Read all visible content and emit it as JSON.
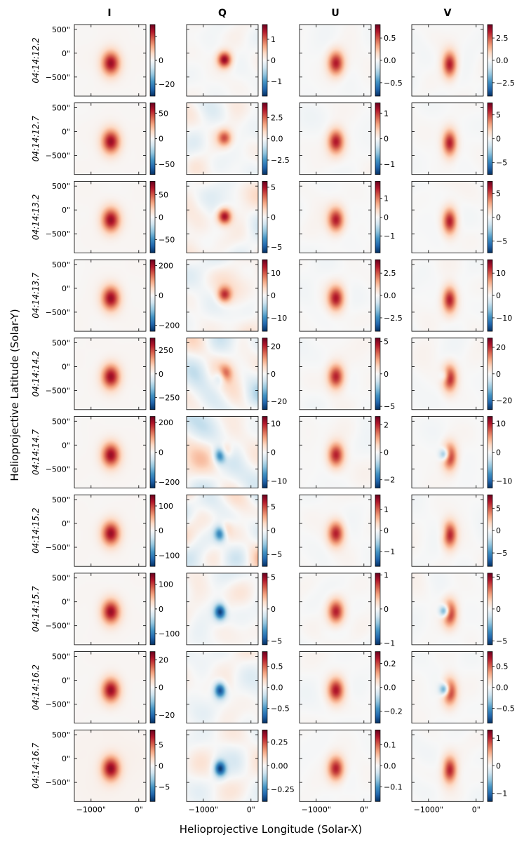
{
  "chart_data": {
    "type": "heatmap",
    "colormap": "RdBu_r",
    "columns": [
      "I",
      "Q",
      "U",
      "V"
    ],
    "rows": [
      "04:14:12.2",
      "04:14:12.7",
      "04:14:13.2",
      "04:14:13.7",
      "04:14:14.2",
      "04:14:14.7",
      "04:14:15.2",
      "04:14:15.7",
      "04:14:16.2",
      "04:14:16.7"
    ],
    "xlabel": "Helioprojective Longitude (Solar-X)",
    "ylabel": "Helioprojective Latitude (Solar-Y)",
    "x_range": [
      -1350,
      150
    ],
    "y_range": [
      -900,
      600
    ],
    "x_ticks": [
      -1000,
      0
    ],
    "x_tick_labels": [
      "−1000\"",
      "0\""
    ],
    "y_ticks": [
      500,
      0,
      -500
    ],
    "y_tick_labels": [
      "500\"",
      "0\"",
      "−500\""
    ],
    "source_center": [
      -580,
      -180
    ],
    "panels": [
      [
        {
          "vmax": 30,
          "ticks": [
            20,
            0,
            -20
          ],
          "labels": [
            "",
            "0",
            "−20"
          ]
        },
        {
          "vmax": 1.7,
          "ticks": [
            1,
            0,
            -1
          ],
          "labels": [
            "1",
            "0",
            "−1"
          ]
        },
        {
          "vmax": 0.8,
          "ticks": [
            0.5,
            0,
            -0.5
          ],
          "labels": [
            "0.5",
            "0.0",
            "−0.5"
          ]
        },
        {
          "vmax": 4,
          "ticks": [
            2.5,
            0,
            -2.5
          ],
          "labels": [
            "2.5",
            "0.0",
            "−2.5"
          ]
        }
      ],
      [
        {
          "vmax": 70,
          "ticks": [
            50,
            0,
            -50
          ],
          "labels": [
            "50",
            "0",
            "−50"
          ]
        },
        {
          "vmax": 4.2,
          "ticks": [
            2.5,
            0,
            -2.5
          ],
          "labels": [
            "2.5",
            "0.0",
            "−2.5"
          ]
        },
        {
          "vmax": 1.4,
          "ticks": [
            1,
            0,
            -1
          ],
          "labels": [
            "1",
            "0",
            "−1"
          ]
        },
        {
          "vmax": 7.5,
          "ticks": [
            5,
            0,
            -5
          ],
          "labels": [
            "5",
            "0",
            "−5"
          ]
        }
      ],
      [
        {
          "vmax": 80,
          "ticks": [
            50,
            0,
            -50
          ],
          "labels": [
            "50",
            "0",
            "−50"
          ]
        },
        {
          "vmax": 6,
          "ticks": [
            5,
            0,
            -5
          ],
          "labels": [
            "5",
            "0",
            "−5"
          ]
        },
        {
          "vmax": 1.9,
          "ticks": [
            1,
            0,
            -1
          ],
          "labels": [
            "1",
            "0",
            "−1"
          ]
        },
        {
          "vmax": 7.5,
          "ticks": [
            5,
            0,
            -5
          ],
          "labels": [
            "5",
            "0",
            "−5"
          ]
        }
      ],
      [
        {
          "vmax": 240,
          "ticks": [
            200,
            0,
            -200
          ],
          "labels": [
            "200",
            "0",
            "−200"
          ]
        },
        {
          "vmax": 16,
          "ticks": [
            10,
            0,
            -10
          ],
          "labels": [
            "10",
            "0",
            "−10"
          ]
        },
        {
          "vmax": 4,
          "ticks": [
            2.5,
            0,
            -2.5
          ],
          "labels": [
            "2.5",
            "0.0",
            "−2.5"
          ]
        },
        {
          "vmax": 16,
          "ticks": [
            10,
            0,
            -10
          ],
          "labels": [
            "10",
            "0",
            "−10"
          ]
        }
      ],
      [
        {
          "vmax": 380,
          "ticks": [
            250,
            0,
            -250
          ],
          "labels": [
            "250",
            "0",
            "−250"
          ]
        },
        {
          "vmax": 26,
          "ticks": [
            20,
            0,
            -20
          ],
          "labels": [
            "20",
            "0",
            "−20"
          ]
        },
        {
          "vmax": 5.5,
          "ticks": [
            5,
            0,
            -5
          ],
          "labels": [
            "5",
            "0",
            "−5"
          ]
        },
        {
          "vmax": 27,
          "ticks": [
            20,
            0,
            -20
          ],
          "labels": [
            "20",
            "0",
            "−20"
          ]
        }
      ],
      [
        {
          "vmax": 240,
          "ticks": [
            200,
            0,
            -200
          ],
          "labels": [
            "200",
            "0",
            "−200"
          ]
        },
        {
          "vmax": 12.5,
          "ticks": [
            10,
            0,
            -10
          ],
          "labels": [
            "10",
            "0",
            "−10"
          ]
        },
        {
          "vmax": 2.6,
          "ticks": [
            2,
            0,
            -2
          ],
          "labels": [
            "2",
            "0",
            "−2"
          ]
        },
        {
          "vmax": 12.5,
          "ticks": [
            10,
            0,
            -10
          ],
          "labels": [
            "10",
            "0",
            "−10"
          ]
        }
      ],
      [
        {
          "vmax": 145,
          "ticks": [
            100,
            0,
            -100
          ],
          "labels": [
            "100",
            "0",
            "−100"
          ]
        },
        {
          "vmax": 7.5,
          "ticks": [
            5,
            0,
            -5
          ],
          "labels": [
            "5",
            "0",
            "−5"
          ]
        },
        {
          "vmax": 1.7,
          "ticks": [
            1,
            0,
            -1
          ],
          "labels": [
            "1",
            "0",
            "−1"
          ]
        },
        {
          "vmax": 8,
          "ticks": [
            5,
            0,
            -5
          ],
          "labels": [
            "5",
            "0",
            "−5"
          ]
        }
      ],
      [
        {
          "vmax": 145,
          "ticks": [
            100,
            0,
            -100
          ],
          "labels": [
            "100",
            "0",
            "−100"
          ]
        },
        {
          "vmax": 5.6,
          "ticks": [
            5,
            0,
            -5
          ],
          "labels": [
            "5",
            "0",
            "−5"
          ]
        },
        {
          "vmax": 1.05,
          "ticks": [
            1,
            0,
            -1
          ],
          "labels": [
            "1",
            "0",
            "−1"
          ]
        },
        {
          "vmax": 5.6,
          "ticks": [
            5,
            0,
            -5
          ],
          "labels": [
            "5",
            "0",
            "−5"
          ]
        }
      ],
      [
        {
          "vmax": 26,
          "ticks": [
            20,
            0,
            -20
          ],
          "labels": [
            "20",
            "0",
            "−20"
          ]
        },
        {
          "vmax": 0.85,
          "ticks": [
            0.5,
            0,
            -0.5
          ],
          "labels": [
            "0.5",
            "0.0",
            "−0.5"
          ]
        },
        {
          "vmax": 0.3,
          "ticks": [
            0.2,
            0,
            -0.2
          ],
          "labels": [
            "0.2",
            "0.0",
            "−0.2"
          ]
        },
        {
          "vmax": 0.85,
          "ticks": [
            0.5,
            0,
            -0.5
          ],
          "labels": [
            "0.5",
            "0.0",
            "−0.5"
          ]
        }
      ],
      [
        {
          "vmax": 8.5,
          "ticks": [
            5,
            0,
            -5
          ],
          "labels": [
            "5",
            "0",
            "−5"
          ]
        },
        {
          "vmax": 0.38,
          "ticks": [
            0.25,
            0,
            -0.25
          ],
          "labels": [
            "0.25",
            "0.00",
            "−0.25"
          ]
        },
        {
          "vmax": 0.17,
          "ticks": [
            0.1,
            0,
            -0.1
          ],
          "labels": [
            "0.1",
            "0.0",
            "−0.1"
          ]
        },
        {
          "vmax": 1.3,
          "ticks": [
            1,
            0,
            -1
          ],
          "labels": [
            "1",
            "0",
            "−1"
          ]
        }
      ]
    ]
  }
}
